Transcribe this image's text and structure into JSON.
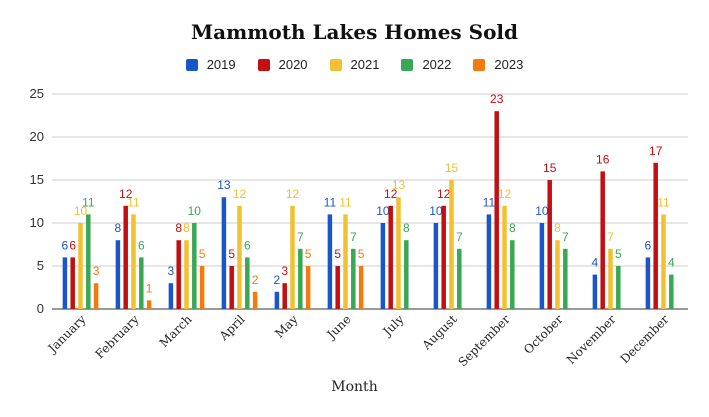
{
  "chart_data": {
    "type": "bar",
    "title": "Mammoth Lakes Homes Sold",
    "xlabel": "Month",
    "ylabel": "",
    "ylim": [
      0,
      25
    ],
    "yticks": [
      0,
      5,
      10,
      15,
      20,
      25
    ],
    "grid": true,
    "legend_position": "top",
    "categories": [
      "January",
      "February",
      "March",
      "April",
      "May",
      "June",
      "July",
      "August",
      "September",
      "October",
      "November",
      "December"
    ],
    "series": [
      {
        "name": "2019",
        "color": "#1a56c8",
        "values": [
          6,
          8,
          3,
          13,
          2,
          11,
          10,
          10,
          11,
          10,
          4,
          6
        ]
      },
      {
        "name": "2020",
        "color": "#c40f12",
        "values": [
          6,
          12,
          8,
          5,
          3,
          5,
          12,
          12,
          23,
          15,
          16,
          17
        ]
      },
      {
        "name": "2021",
        "color": "#f2c130",
        "values": [
          10,
          11,
          8,
          12,
          12,
          11,
          13,
          15,
          12,
          8,
          7,
          11
        ]
      },
      {
        "name": "2022",
        "color": "#3aa757",
        "values": [
          11,
          6,
          10,
          6,
          7,
          7,
          8,
          7,
          8,
          7,
          5,
          4
        ]
      },
      {
        "name": "2023",
        "color": "#f47a0e",
        "values": [
          3,
          1,
          5,
          2,
          5,
          5,
          null,
          null,
          null,
          null,
          null,
          null
        ]
      }
    ]
  }
}
